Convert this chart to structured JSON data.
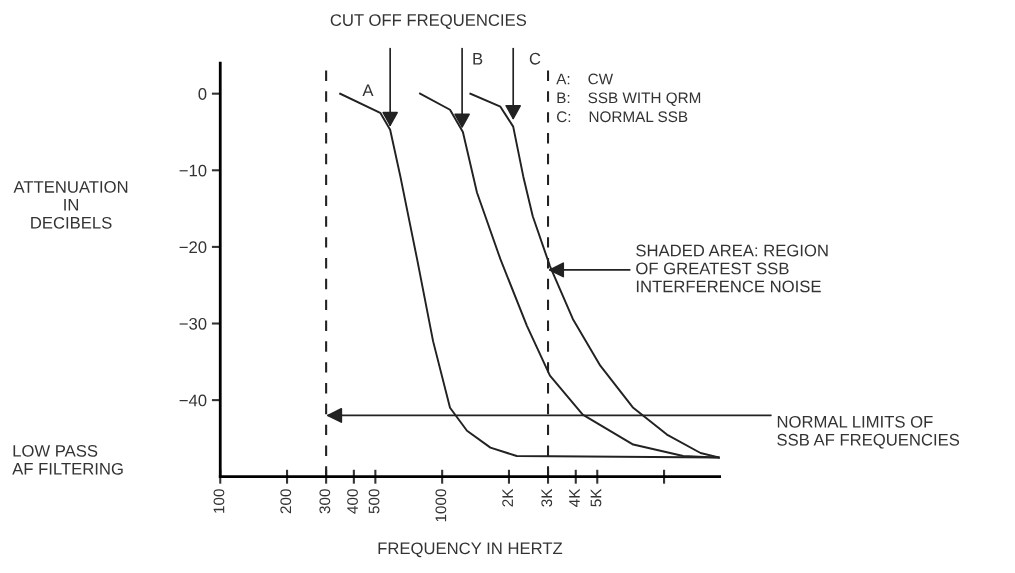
{
  "chart_data": {
    "type": "line",
    "title": "CUT OFF FREQUENCIES",
    "xlabel": "FREQUENCY IN HERTZ",
    "ylabel": "ATTENUATION\nIN\nDECIBELS",
    "log": "x",
    "xlim": [
      100,
      17800
    ],
    "ylim": [
      -50,
      4
    ],
    "xticks": [
      100,
      200,
      300,
      400,
      500,
      1000,
      {
        "value": 2000,
        "label": "2K"
      },
      {
        "value": 3000,
        "label": "3K"
      },
      {
        "value": 4000,
        "label": "4K"
      },
      {
        "value": 5000,
        "label": "5K"
      },
      {
        "value": 10000,
        "label": null
      }
    ],
    "yticks": [
      0,
      -10,
      -20,
      -30,
      -40
    ],
    "grid": false,
    "marker": "none",
    "line_style": "solid",
    "series": [
      {
        "color": "#222222",
        "x": [
          347,
          526,
          583,
          648,
          771,
          910,
          1085,
          1294,
          1650,
          2170,
          17800
        ],
        "values": [
          0,
          -2.5,
          -4.7,
          -10.8,
          -21.6,
          -32.3,
          -41,
          -44,
          -46.2,
          -47.3,
          -47.5
        ]
      },
      {
        "color": "#222222",
        "x": [
          795,
          1085,
          1240,
          1435,
          1830,
          2410,
          3060,
          4300,
          7260,
          12200,
          17800
        ],
        "values": [
          0,
          -2.1,
          -5,
          -12.9,
          -21.6,
          -30.3,
          -36.8,
          -41.9,
          -45.8,
          -47.3,
          -47.5
        ]
      },
      {
        "color": "#222222",
        "x": [
          1340,
          1830,
          2090,
          2320,
          2560,
          3060,
          3880,
          5160,
          7260,
          10300,
          14600,
          17800
        ],
        "values": [
          0,
          -1.7,
          -4.3,
          -10.8,
          -16,
          -22.5,
          -29.4,
          -35.5,
          -41,
          -44.5,
          -46.9,
          -47.5
        ]
      }
    ],
    "ref_lines": [
      {
        "axis": "x",
        "value": 300,
        "color": "#222222",
        "line_style": "dashed"
      },
      {
        "axis": "x",
        "value": 3000,
        "color": "#222222",
        "line_style": "dashed"
      }
    ],
    "annotations": [
      {
        "text": "A",
        "x": 583,
        "y": -4.7
      },
      {
        "text": "B",
        "x": 1230,
        "y": -4.9
      },
      {
        "text": "C",
        "x": 2090,
        "y": -3.8
      },
      "A:    CW",
      "B:    SSB WITH QRM",
      "C:    NORMAL SSB",
      "SHADED AREA: REGION\nOF GREATEST SSB\nINTERFERENCE NOISE",
      {
        "text": "NORMAL LIMITS OF\nSSB AF FREQUENCIES",
        "x": 300,
        "y": -42
      },
      "LOW PASS\nAF FILTERING"
    ]
  }
}
